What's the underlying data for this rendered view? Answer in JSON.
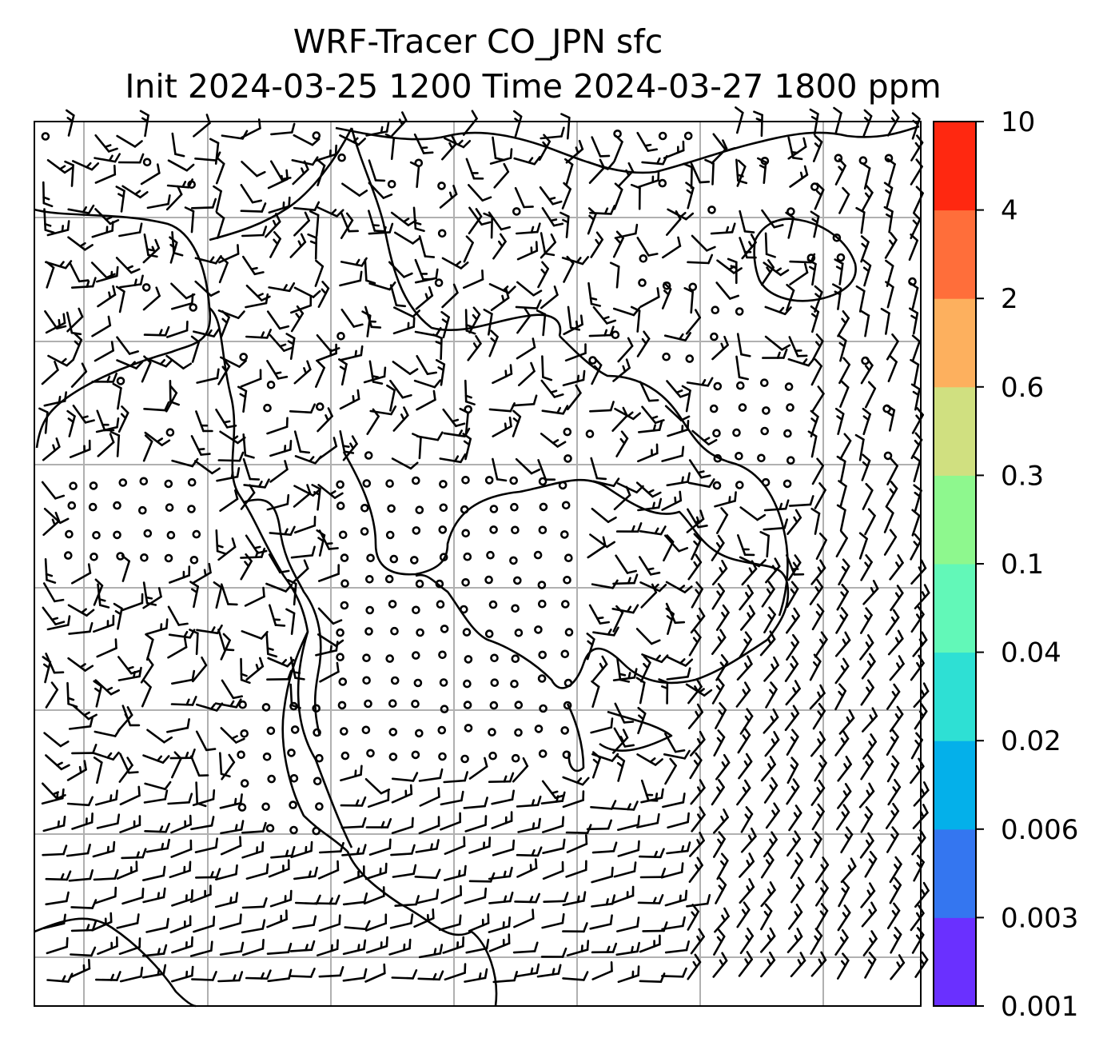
{
  "title": {
    "line1": "WRF-Tracer CO_JPN sfc",
    "line2": "Init 2024-03-25 1200 Time 2024-03-27 1800 ppm"
  },
  "colorbar": {
    "levels": [
      "0.001",
      "0.003",
      "0.006",
      "0.02",
      "0.04",
      "0.1",
      "0.3",
      "0.6",
      "2",
      "4",
      "10"
    ],
    "colors": [
      "#6a30ff",
      "#3476f0",
      "#04b0ea",
      "#2ee0d4",
      "#62f8b8",
      "#8ef88e",
      "#d0e080",
      "#fdb05e",
      "#ff6e3a",
      "#ff2810"
    ]
  },
  "map": {
    "gridlines": "on",
    "coastline_color": "#000000",
    "grid_color": "#b0b0b0",
    "wind_barb_color": "#000000"
  }
}
